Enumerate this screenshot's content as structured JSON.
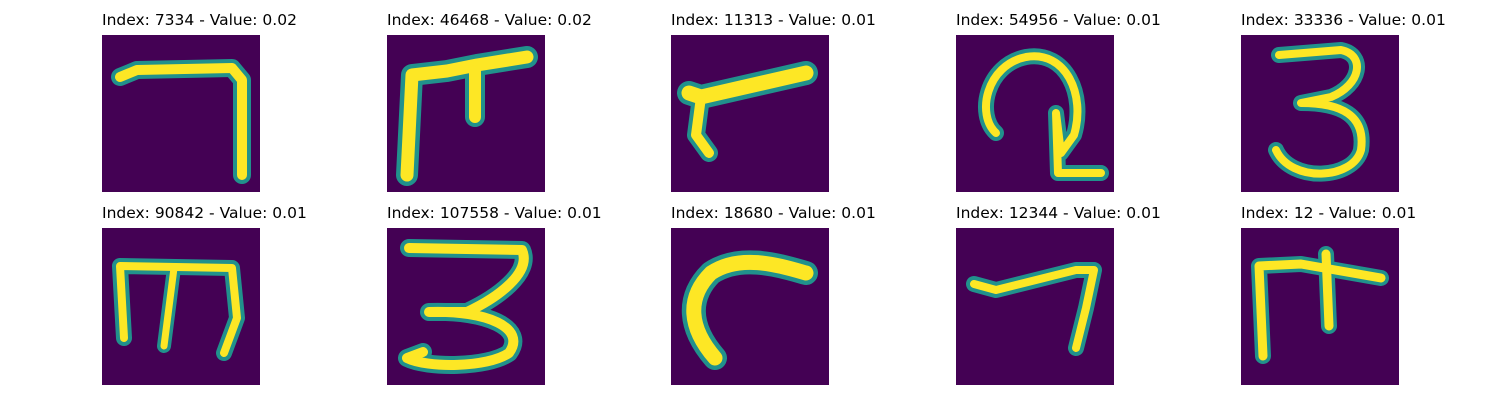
{
  "colors": {
    "background": "#440154",
    "stroke_edge": "#21918c",
    "stroke_core": "#fde725"
  },
  "grid": {
    "items": [
      {
        "title": "Index: 7334 - Value: 0.02",
        "index": 7334,
        "value": 0.02,
        "shape": "seven-long"
      },
      {
        "title": "Index: 46468 - Value: 0.02",
        "index": 46468,
        "value": 0.02,
        "shape": "pi-like"
      },
      {
        "title": "Index: 11313 - Value: 0.01",
        "index": 11313,
        "value": 0.01,
        "shape": "slanted-stroke"
      },
      {
        "title": "Index: 54956 - Value: 0.01",
        "index": 54956,
        "value": 0.01,
        "shape": "loop-glyph"
      },
      {
        "title": "Index: 33336 - Value: 0.01",
        "index": 33336,
        "value": 0.01,
        "shape": "three"
      },
      {
        "title": "Index: 90842 - Value: 0.01",
        "index": 90842,
        "value": 0.01,
        "shape": "m-like"
      },
      {
        "title": "Index: 107558 - Value: 0.01",
        "index": 107558,
        "value": 0.01,
        "shape": "three-wide"
      },
      {
        "title": "Index: 18680 - Value: 0.01",
        "index": 18680,
        "value": 0.01,
        "shape": "arc"
      },
      {
        "title": "Index: 12344 - Value: 0.01",
        "index": 12344,
        "value": 0.01,
        "shape": "seven-short"
      },
      {
        "title": "Index: 12 - Value: 0.01",
        "index": 12,
        "value": 0.01,
        "shape": "pi-small"
      }
    ]
  }
}
